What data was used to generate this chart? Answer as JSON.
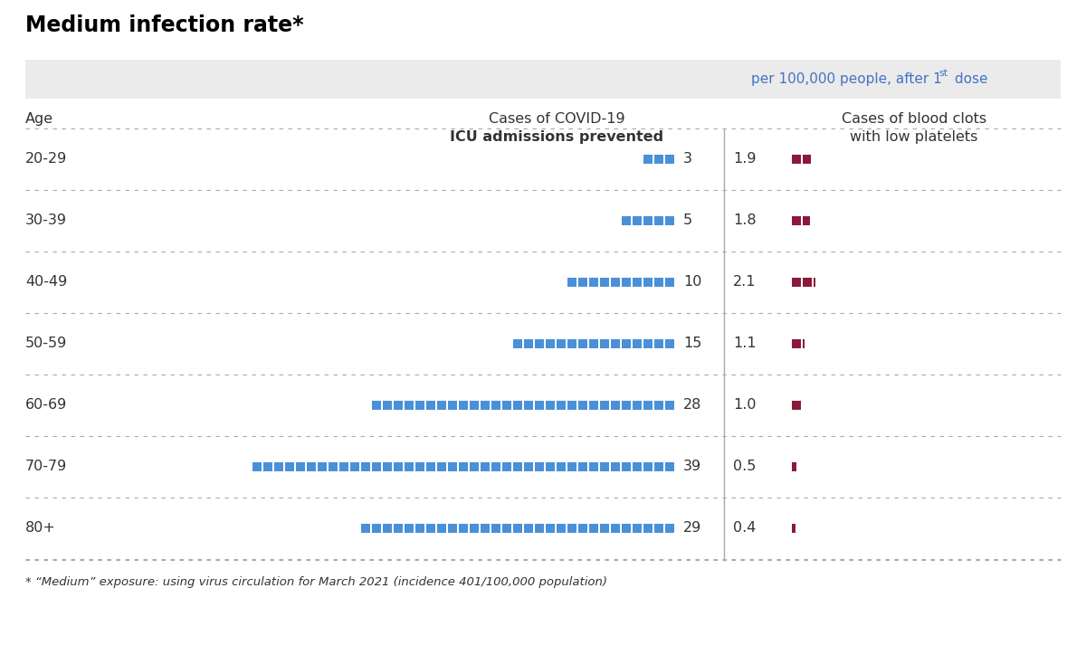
{
  "title": "Medium infection rate*",
  "footnote": "* “Medium” exposure: using virus circulation for March 2021 (incidence 401/100,000 population)",
  "age_groups": [
    "20-29",
    "30-39",
    "40-49",
    "50-59",
    "60-69",
    "70-79",
    "80+"
  ],
  "icu_values": [
    3,
    5,
    10,
    15,
    28,
    39,
    29
  ],
  "clot_values": [
    1.9,
    1.8,
    2.1,
    1.1,
    1.0,
    0.5,
    0.4
  ],
  "col1_header_line1": "Cases of COVID-19",
  "col1_header_line2": "ICU admissions prevented",
  "col2_header_line1": "Cases of blood clots",
  "col2_header_line2": "with low platelets",
  "age_label": "Age",
  "blue_color": "#4a90d9",
  "clot_color": "#8b1a3a",
  "header_bg_color": "#ebebeb",
  "divider_color": "#b0b0b0",
  "text_color": "#333333",
  "subtitle_color": "#4472c4",
  "fig_width": 12.0,
  "fig_height": 7.34,
  "dpi": 100
}
